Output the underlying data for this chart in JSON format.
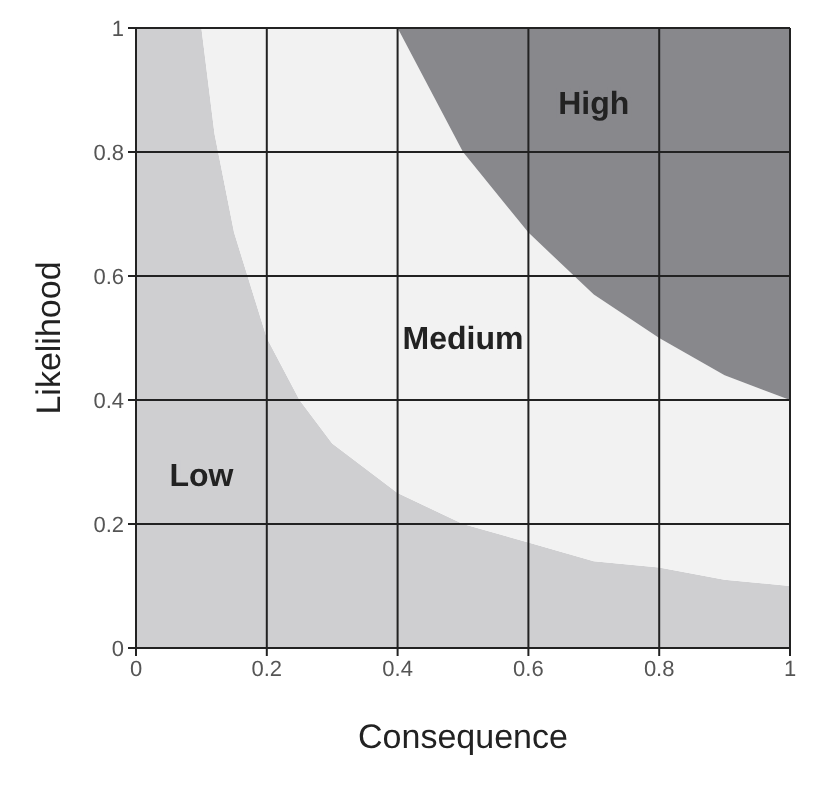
{
  "chart_data": {
    "type": "area",
    "xlabel": "Consequence",
    "ylabel": "Likelihood",
    "stacked": true,
    "x": [
      0,
      0.1,
      0.12,
      0.15,
      0.2,
      0.25,
      0.3,
      0.4,
      0.5,
      0.6,
      0.7,
      0.8,
      0.9,
      1
    ],
    "series": [
      {
        "name": "Low",
        "color": "#cfcfd1",
        "values": [
          1,
          1,
          0.83,
          0.67,
          0.5,
          0.4,
          0.33,
          0.25,
          0.2,
          0.17,
          0.14,
          0.13,
          0.11,
          0.1
        ]
      },
      {
        "name": "Medium",
        "color": "#f2f2f2",
        "values": [
          0,
          0,
          0.17,
          0.33,
          0.5,
          0.6,
          0.67,
          0.75,
          0.6,
          0.5,
          0.43,
          0.37,
          0.33,
          0.3
        ]
      },
      {
        "name": "High",
        "color": "#88888c",
        "values": [
          0,
          0,
          0,
          0,
          0,
          0,
          0,
          0,
          0.2,
          0.33,
          0.43,
          0.5,
          0.56,
          0.6
        ]
      }
    ],
    "xlim": [
      0,
      1
    ],
    "ylim": [
      0,
      1
    ],
    "xticks": [
      0,
      0.2,
      0.4,
      0.6,
      0.8,
      1
    ],
    "yticks": [
      0,
      0.2,
      0.4,
      0.6,
      0.8,
      1
    ],
    "grid": true
  }
}
